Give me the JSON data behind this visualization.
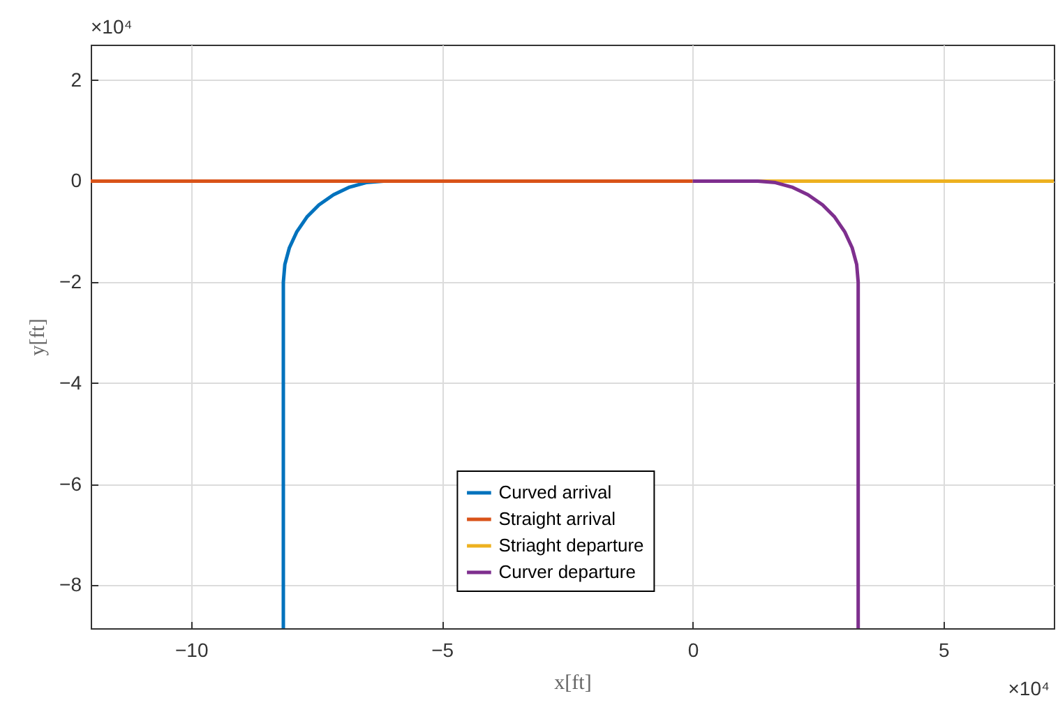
{
  "chart_data": {
    "type": "line",
    "xlabel": "x[ft]",
    "ylabel": "y[ft]",
    "annotations": [
      "×10⁴",
      "×10⁴"
    ],
    "series": [
      {
        "name": "Curved arrival",
        "color": "#0072bd",
        "x": [
          -8.16,
          -8.16,
          -8.13,
          -8.04,
          -7.89,
          -7.69,
          -7.45,
          -7.16,
          -6.84,
          -6.51,
          -6.16
        ],
        "values": [
          -8.85,
          -2,
          -1.65,
          -1.32,
          -1.0,
          -0.71,
          -0.47,
          -0.27,
          -0.12,
          -0.03,
          0
        ]
      },
      {
        "name": "Straight arrival",
        "color": "#d95319",
        "x": [
          -12,
          0
        ],
        "values": [
          0,
          0
        ]
      },
      {
        "name": "Striaght departure",
        "color": "#edb120",
        "x": [
          0,
          7.2
        ],
        "values": [
          0,
          0
        ]
      },
      {
        "name": "Curver departure",
        "color": "#7e2f8e",
        "x": [
          0,
          1.3,
          1.65,
          1.98,
          2.3,
          2.59,
          2.83,
          3.03,
          3.18,
          3.27,
          3.3,
          3.3
        ],
        "values": [
          0,
          0,
          -0.03,
          -0.12,
          -0.27,
          -0.47,
          -0.71,
          -1.0,
          -1.32,
          -1.65,
          -2,
          -8.85
        ]
      }
    ],
    "xlim": [
      -12,
      7.2
    ],
    "xticks": [
      -10,
      -5,
      0,
      5
    ],
    "ylim": [
      -8.85,
      2.7
    ],
    "yticks": [
      -8,
      -6,
      -4,
      -2,
      0,
      2
    ],
    "grid": true,
    "legend": "bottom",
    "line_style": "solid",
    "marker": "none"
  }
}
